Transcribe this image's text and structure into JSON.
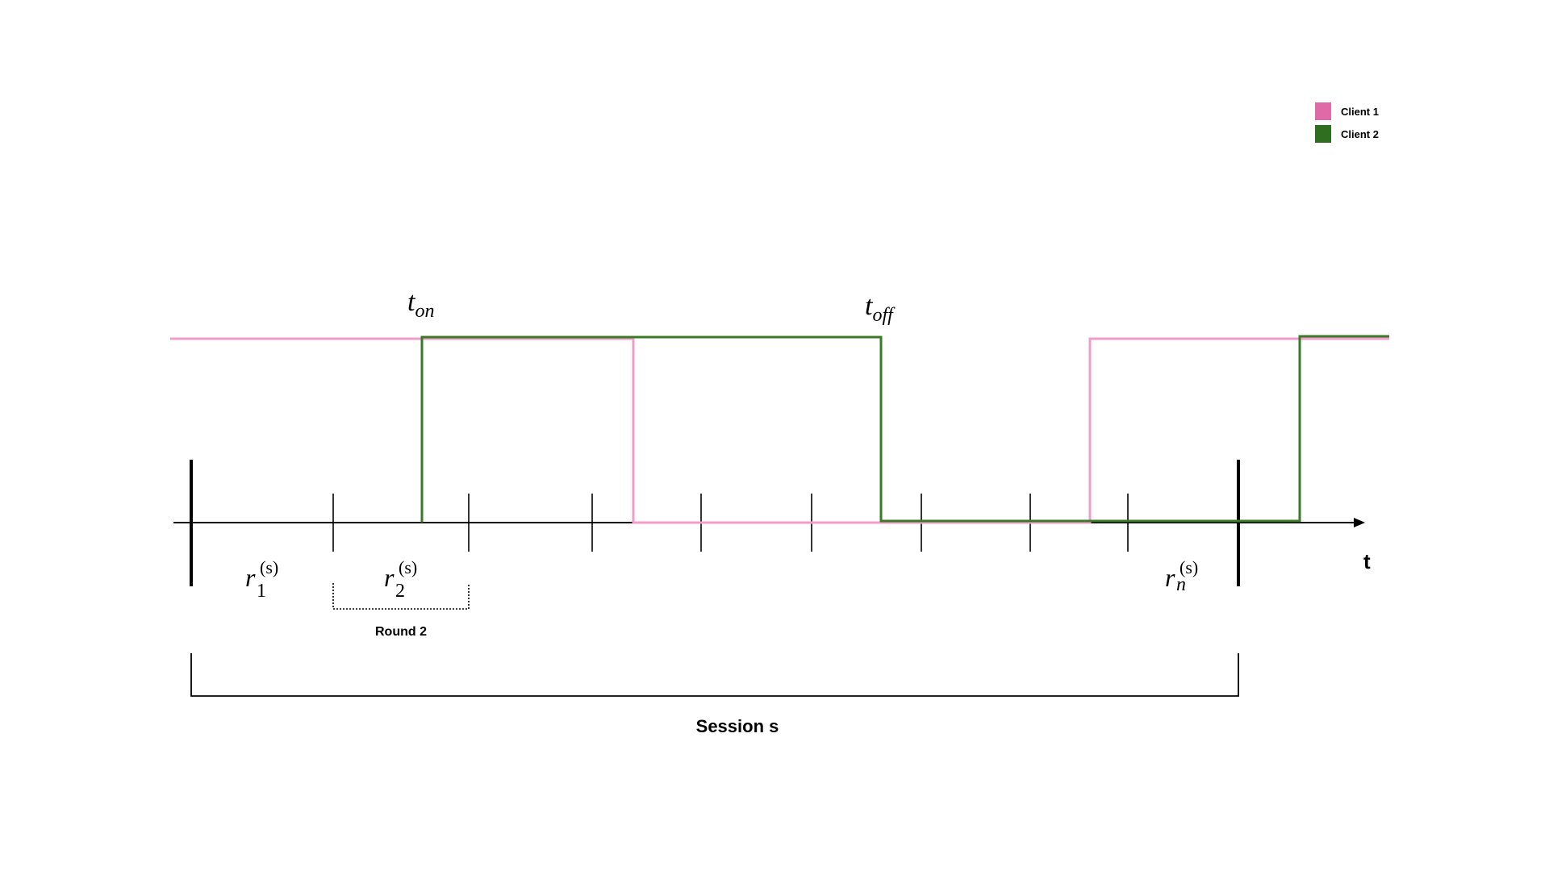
{
  "legend": {
    "items": [
      {
        "label": "Client 1",
        "color": "#e06aa8"
      },
      {
        "label": "Client 2",
        "color": "#2f6e1f"
      }
    ]
  },
  "signals": {
    "client1_color": "#f29ccb",
    "client2_color": "#3a7a26"
  },
  "labels": {
    "t_on_base": "t",
    "t_on_sub": "on",
    "t_off_base": "t",
    "t_off_sub": "off",
    "axis_label": "t",
    "round_label": "Round 2",
    "session_label": "Session s"
  },
  "round_labels": [
    {
      "base": "r",
      "sup": "(s)",
      "sub": "1"
    },
    {
      "base": "r",
      "sup": "(s)",
      "sub": "2"
    },
    {
      "base": "r",
      "sup": "(s)",
      "sub": "n"
    }
  ]
}
